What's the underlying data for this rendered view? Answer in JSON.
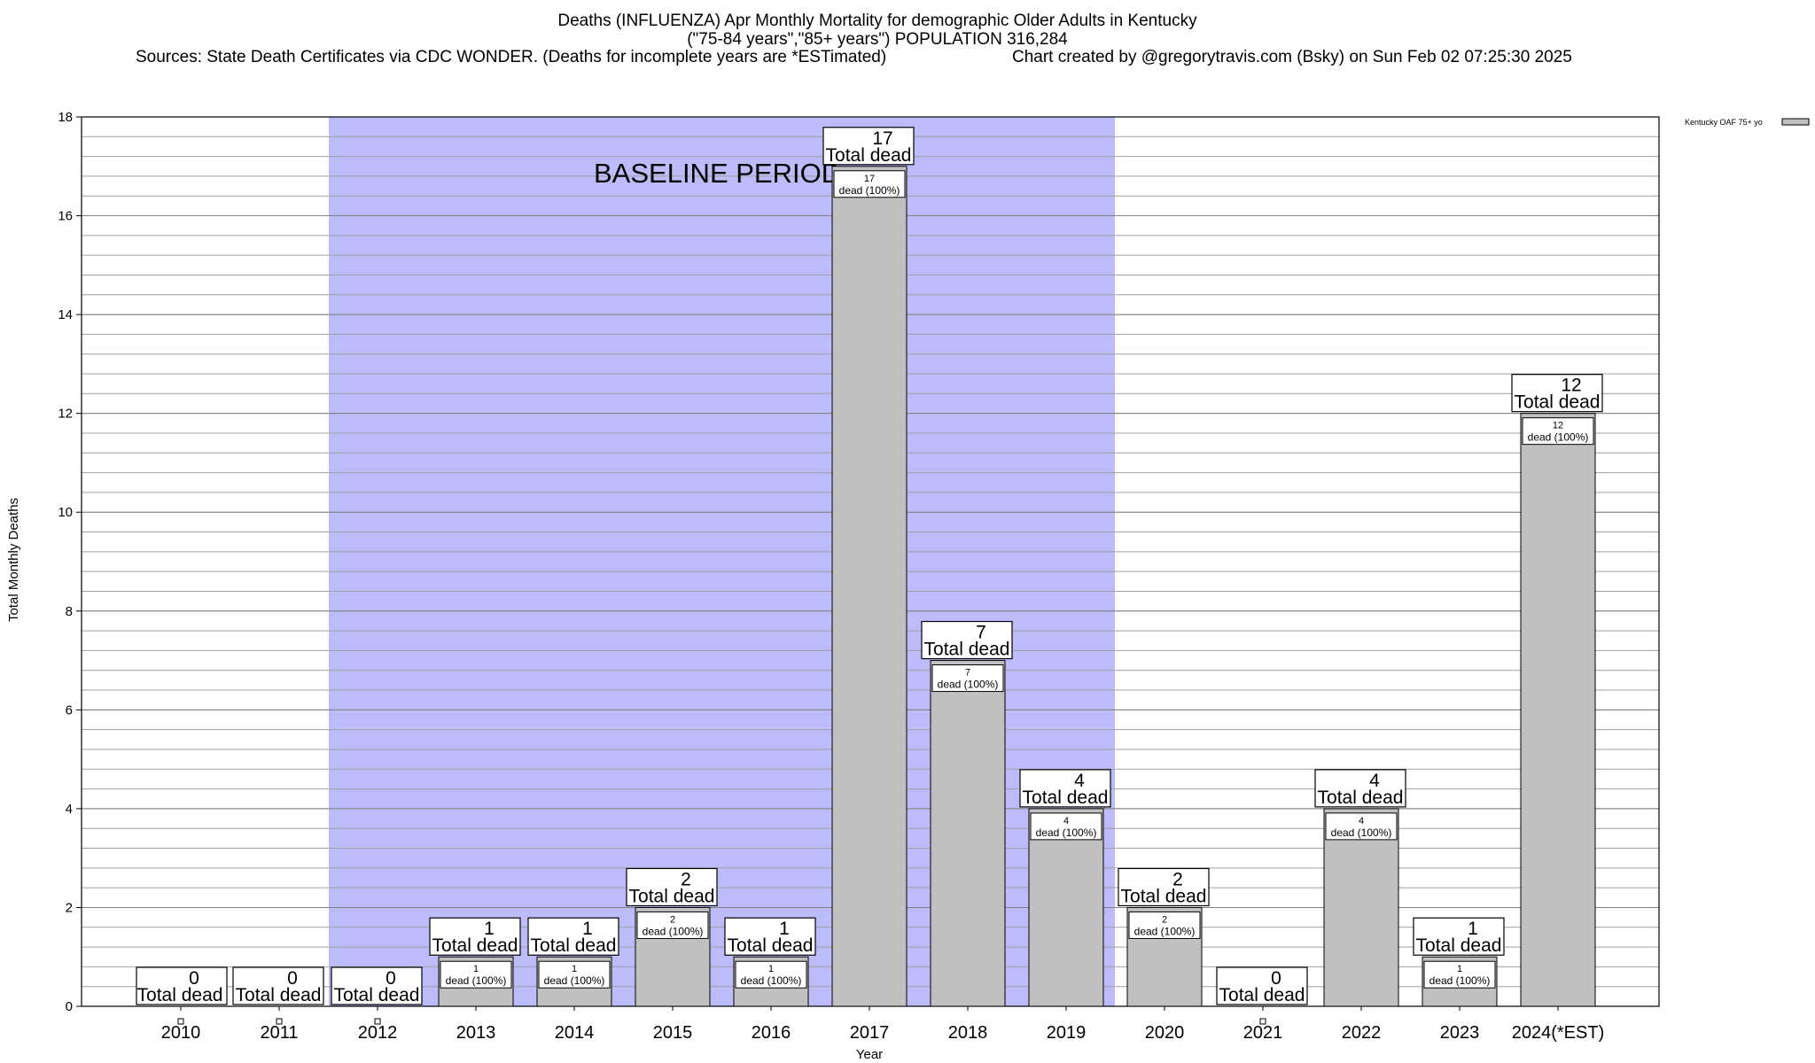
{
  "chart_data": {
    "type": "bar",
    "title": "Deaths (INFLUENZA) Apr Monthly Mortality for demographic Older Adults in Kentucky",
    "subtitle": "(\"75-84 years\",\"85+ years\") POPULATION 316,284",
    "sources": "Sources: State Death Certificates via CDC WONDER. (Deaths for incomplete years are *ESTimated)",
    "credit": "Chart created by @gregorytravis.com (Bsky) on Sun Feb 02 07:25:30 2025",
    "xlabel": "Year",
    "ylabel": "Total Monthly Deaths",
    "ylim": [
      0,
      18
    ],
    "y_major_ticks": [
      0,
      2,
      4,
      6,
      8,
      10,
      12,
      14,
      16,
      18
    ],
    "grid": true,
    "legend": {
      "position": "top-right",
      "entries": [
        "Kentucky OAF 75+ yo"
      ]
    },
    "series": [
      {
        "name": "Kentucky OAF 75+ yo",
        "color": "#c0c0c0",
        "values": [
          0,
          0,
          0,
          1,
          1,
          2,
          1,
          17,
          7,
          4,
          2,
          0,
          4,
          1,
          12
        ]
      }
    ],
    "categories": [
      "2010",
      "2011",
      "2012",
      "2013",
      "2014",
      "2015",
      "2016",
      "2017",
      "2018",
      "2019",
      "2020",
      "2021",
      "2022",
      "2023",
      "2024(*EST)"
    ],
    "baseline_period": {
      "label": "BASELINE PERIOD",
      "from": "2012",
      "to": "2019",
      "color": "#bcbcfa"
    },
    "total_label_text": "Total dead",
    "inner_label_text": "dead (100%)"
  }
}
